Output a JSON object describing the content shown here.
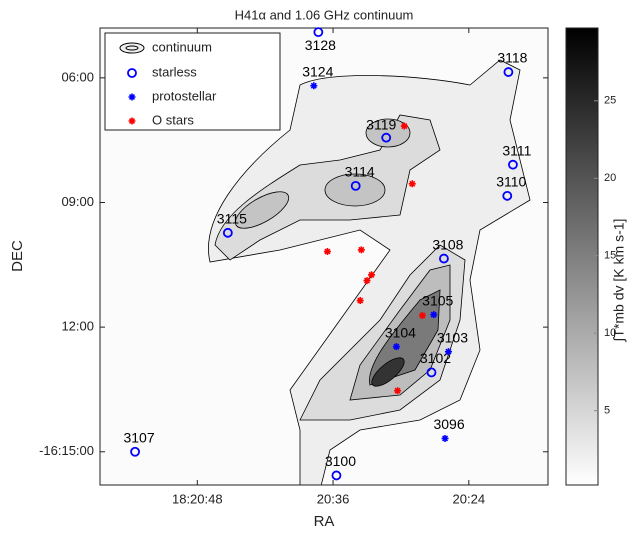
{
  "chart_data": {
    "type": "scatter",
    "title": "H41α and 1.06 GHz continuum",
    "x_label": "RA",
    "y_label": "DEC",
    "xlim": [
      56.6,
      17.0
    ],
    "ylim": [
      15.8,
      4.8
    ],
    "xticks": [
      {
        "value": 48,
        "label": "18:20:48"
      },
      {
        "value": 36,
        "label": "20:36"
      },
      {
        "value": 24,
        "label": "20:24"
      }
    ],
    "yticks": [
      {
        "value": 6,
        "label": "06:00"
      },
      {
        "value": 9,
        "label": "09:00"
      },
      {
        "value": 12,
        "label": "12:00"
      },
      {
        "value": 15,
        "label": "-16:15:00"
      }
    ],
    "contours": {
      "name": "continuum"
    },
    "colorbar": {
      "label": "∫T*mb dv [K km s-1]",
      "clim": [
        0.2,
        29.7
      ],
      "ticks": [
        5,
        10,
        15,
        20,
        25
      ]
    },
    "legend": "upper left",
    "series": [
      {
        "name": "starless",
        "color": "#0000ff",
        "marker": "circle",
        "x": [
          37.3,
          20.5,
          31.3,
          20.1,
          34.0,
          20.6,
          45.3,
          26.2,
          27.3,
          53.5,
          35.7
        ],
        "y": [
          4.9,
          5.86,
          7.44,
          8.09,
          8.6,
          8.84,
          9.73,
          10.35,
          13.09,
          15.0,
          15.57
        ],
        "labels": [
          "3128",
          "3118",
          "3119",
          "3111",
          "3114",
          "3110",
          "3115",
          "3108",
          "3102",
          "3107",
          "3100"
        ]
      },
      {
        "name": "protostellar",
        "color": "#0000ff",
        "marker": "asterisk",
        "x": [
          37.7,
          27.1,
          30.4,
          25.8,
          26.1
        ],
        "y": [
          6.19,
          11.7,
          12.47,
          12.59,
          14.68
        ],
        "labels": [
          "3124",
          "3105",
          "3104",
          "3103",
          "3096"
        ]
      },
      {
        "name": "O stars",
        "color": "#ff0000",
        "marker": "asterisk",
        "x": [
          29.7,
          29.0,
          36.5,
          33.5,
          32.6,
          33.0,
          33.6,
          28.1,
          30.3
        ],
        "y": [
          7.16,
          8.55,
          10.18,
          10.14,
          10.74,
          10.88,
          11.36,
          11.72,
          13.53
        ]
      }
    ]
  }
}
